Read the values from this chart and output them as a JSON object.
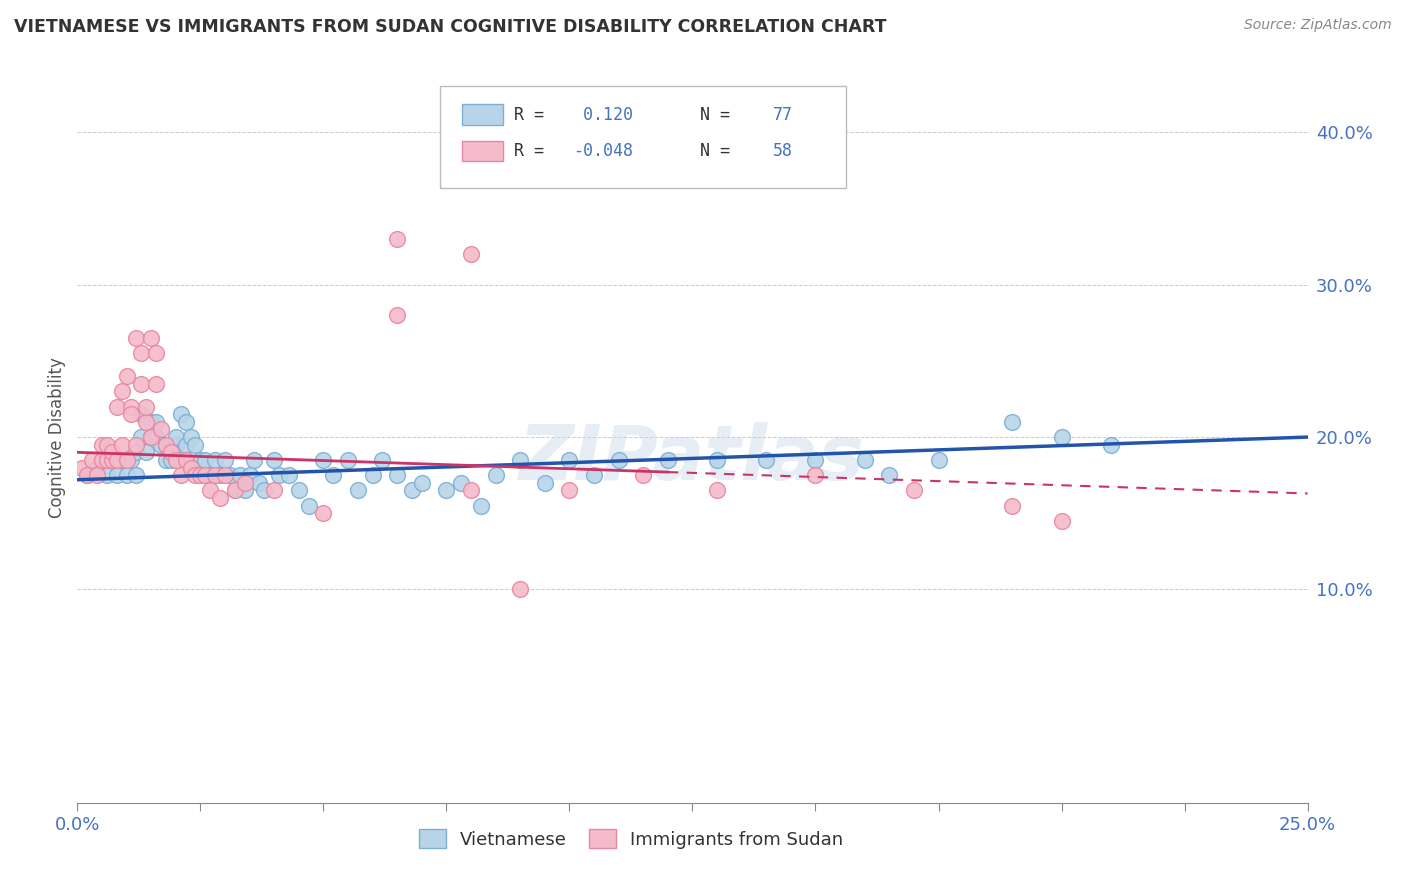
{
  "title": "VIETNAMESE VS IMMIGRANTS FROM SUDAN COGNITIVE DISABILITY CORRELATION CHART",
  "source": "Source: ZipAtlas.com",
  "ylabel": "Cognitive Disability",
  "xlim": [
    0.0,
    0.25
  ],
  "ylim": [
    -0.04,
    0.44
  ],
  "ytick_vals": [
    0.1,
    0.2,
    0.3,
    0.4
  ],
  "watermark": "ZIPatlas",
  "r1": 0.12,
  "n1": 77,
  "r2": -0.048,
  "n2": 58,
  "blue_color": "#7BAFD4",
  "blue_fill": "#B8D4E8",
  "pink_color": "#E887A0",
  "pink_fill": "#F4BBCA",
  "trend_blue": "#2255AA",
  "trend_pink": "#CC3366",
  "blue_scatter_x": [
    0.002,
    0.004,
    0.005,
    0.006,
    0.007,
    0.008,
    0.009,
    0.01,
    0.011,
    0.012,
    0.012,
    0.013,
    0.013,
    0.014,
    0.015,
    0.015,
    0.016,
    0.016,
    0.017,
    0.018,
    0.018,
    0.019,
    0.019,
    0.02,
    0.02,
    0.021,
    0.022,
    0.022,
    0.023,
    0.024,
    0.025,
    0.026,
    0.027,
    0.028,
    0.029,
    0.03,
    0.031,
    0.032,
    0.033,
    0.034,
    0.035,
    0.036,
    0.037,
    0.038,
    0.04,
    0.041,
    0.043,
    0.045,
    0.047,
    0.05,
    0.052,
    0.055,
    0.057,
    0.06,
    0.062,
    0.065,
    0.068,
    0.07,
    0.075,
    0.078,
    0.082,
    0.085,
    0.09,
    0.095,
    0.1,
    0.105,
    0.11,
    0.12,
    0.13,
    0.14,
    0.15,
    0.16,
    0.165,
    0.175,
    0.19,
    0.2,
    0.21
  ],
  "blue_scatter_y": [
    0.175,
    0.18,
    0.185,
    0.175,
    0.185,
    0.175,
    0.185,
    0.175,
    0.185,
    0.19,
    0.175,
    0.2,
    0.215,
    0.19,
    0.2,
    0.21,
    0.2,
    0.21,
    0.195,
    0.185,
    0.195,
    0.185,
    0.195,
    0.195,
    0.2,
    0.215,
    0.195,
    0.21,
    0.2,
    0.195,
    0.185,
    0.185,
    0.175,
    0.185,
    0.175,
    0.185,
    0.175,
    0.165,
    0.175,
    0.165,
    0.175,
    0.185,
    0.17,
    0.165,
    0.185,
    0.175,
    0.175,
    0.165,
    0.155,
    0.185,
    0.175,
    0.185,
    0.165,
    0.175,
    0.185,
    0.175,
    0.165,
    0.17,
    0.165,
    0.17,
    0.155,
    0.175,
    0.185,
    0.17,
    0.185,
    0.175,
    0.185,
    0.185,
    0.185,
    0.185,
    0.185,
    0.185,
    0.175,
    0.185,
    0.21,
    0.2,
    0.195
  ],
  "pink_scatter_x": [
    0.001,
    0.002,
    0.003,
    0.004,
    0.005,
    0.005,
    0.006,
    0.006,
    0.007,
    0.007,
    0.008,
    0.008,
    0.009,
    0.009,
    0.01,
    0.01,
    0.011,
    0.011,
    0.012,
    0.012,
    0.013,
    0.013,
    0.014,
    0.014,
    0.015,
    0.015,
    0.016,
    0.016,
    0.017,
    0.018,
    0.019,
    0.02,
    0.021,
    0.022,
    0.023,
    0.024,
    0.025,
    0.026,
    0.027,
    0.028,
    0.029,
    0.03,
    0.032,
    0.034,
    0.04,
    0.05,
    0.065,
    0.08,
    0.09,
    0.1,
    0.115,
    0.13,
    0.15,
    0.17,
    0.19,
    0.2,
    0.065,
    0.08
  ],
  "pink_scatter_y": [
    0.18,
    0.175,
    0.185,
    0.175,
    0.185,
    0.195,
    0.185,
    0.195,
    0.185,
    0.19,
    0.185,
    0.22,
    0.195,
    0.23,
    0.24,
    0.185,
    0.22,
    0.215,
    0.195,
    0.265,
    0.255,
    0.235,
    0.21,
    0.22,
    0.2,
    0.265,
    0.255,
    0.235,
    0.205,
    0.195,
    0.19,
    0.185,
    0.175,
    0.185,
    0.18,
    0.175,
    0.175,
    0.175,
    0.165,
    0.175,
    0.16,
    0.175,
    0.165,
    0.17,
    0.165,
    0.15,
    0.28,
    0.165,
    0.1,
    0.165,
    0.175,
    0.165,
    0.175,
    0.165,
    0.155,
    0.145,
    0.33,
    0.32
  ]
}
